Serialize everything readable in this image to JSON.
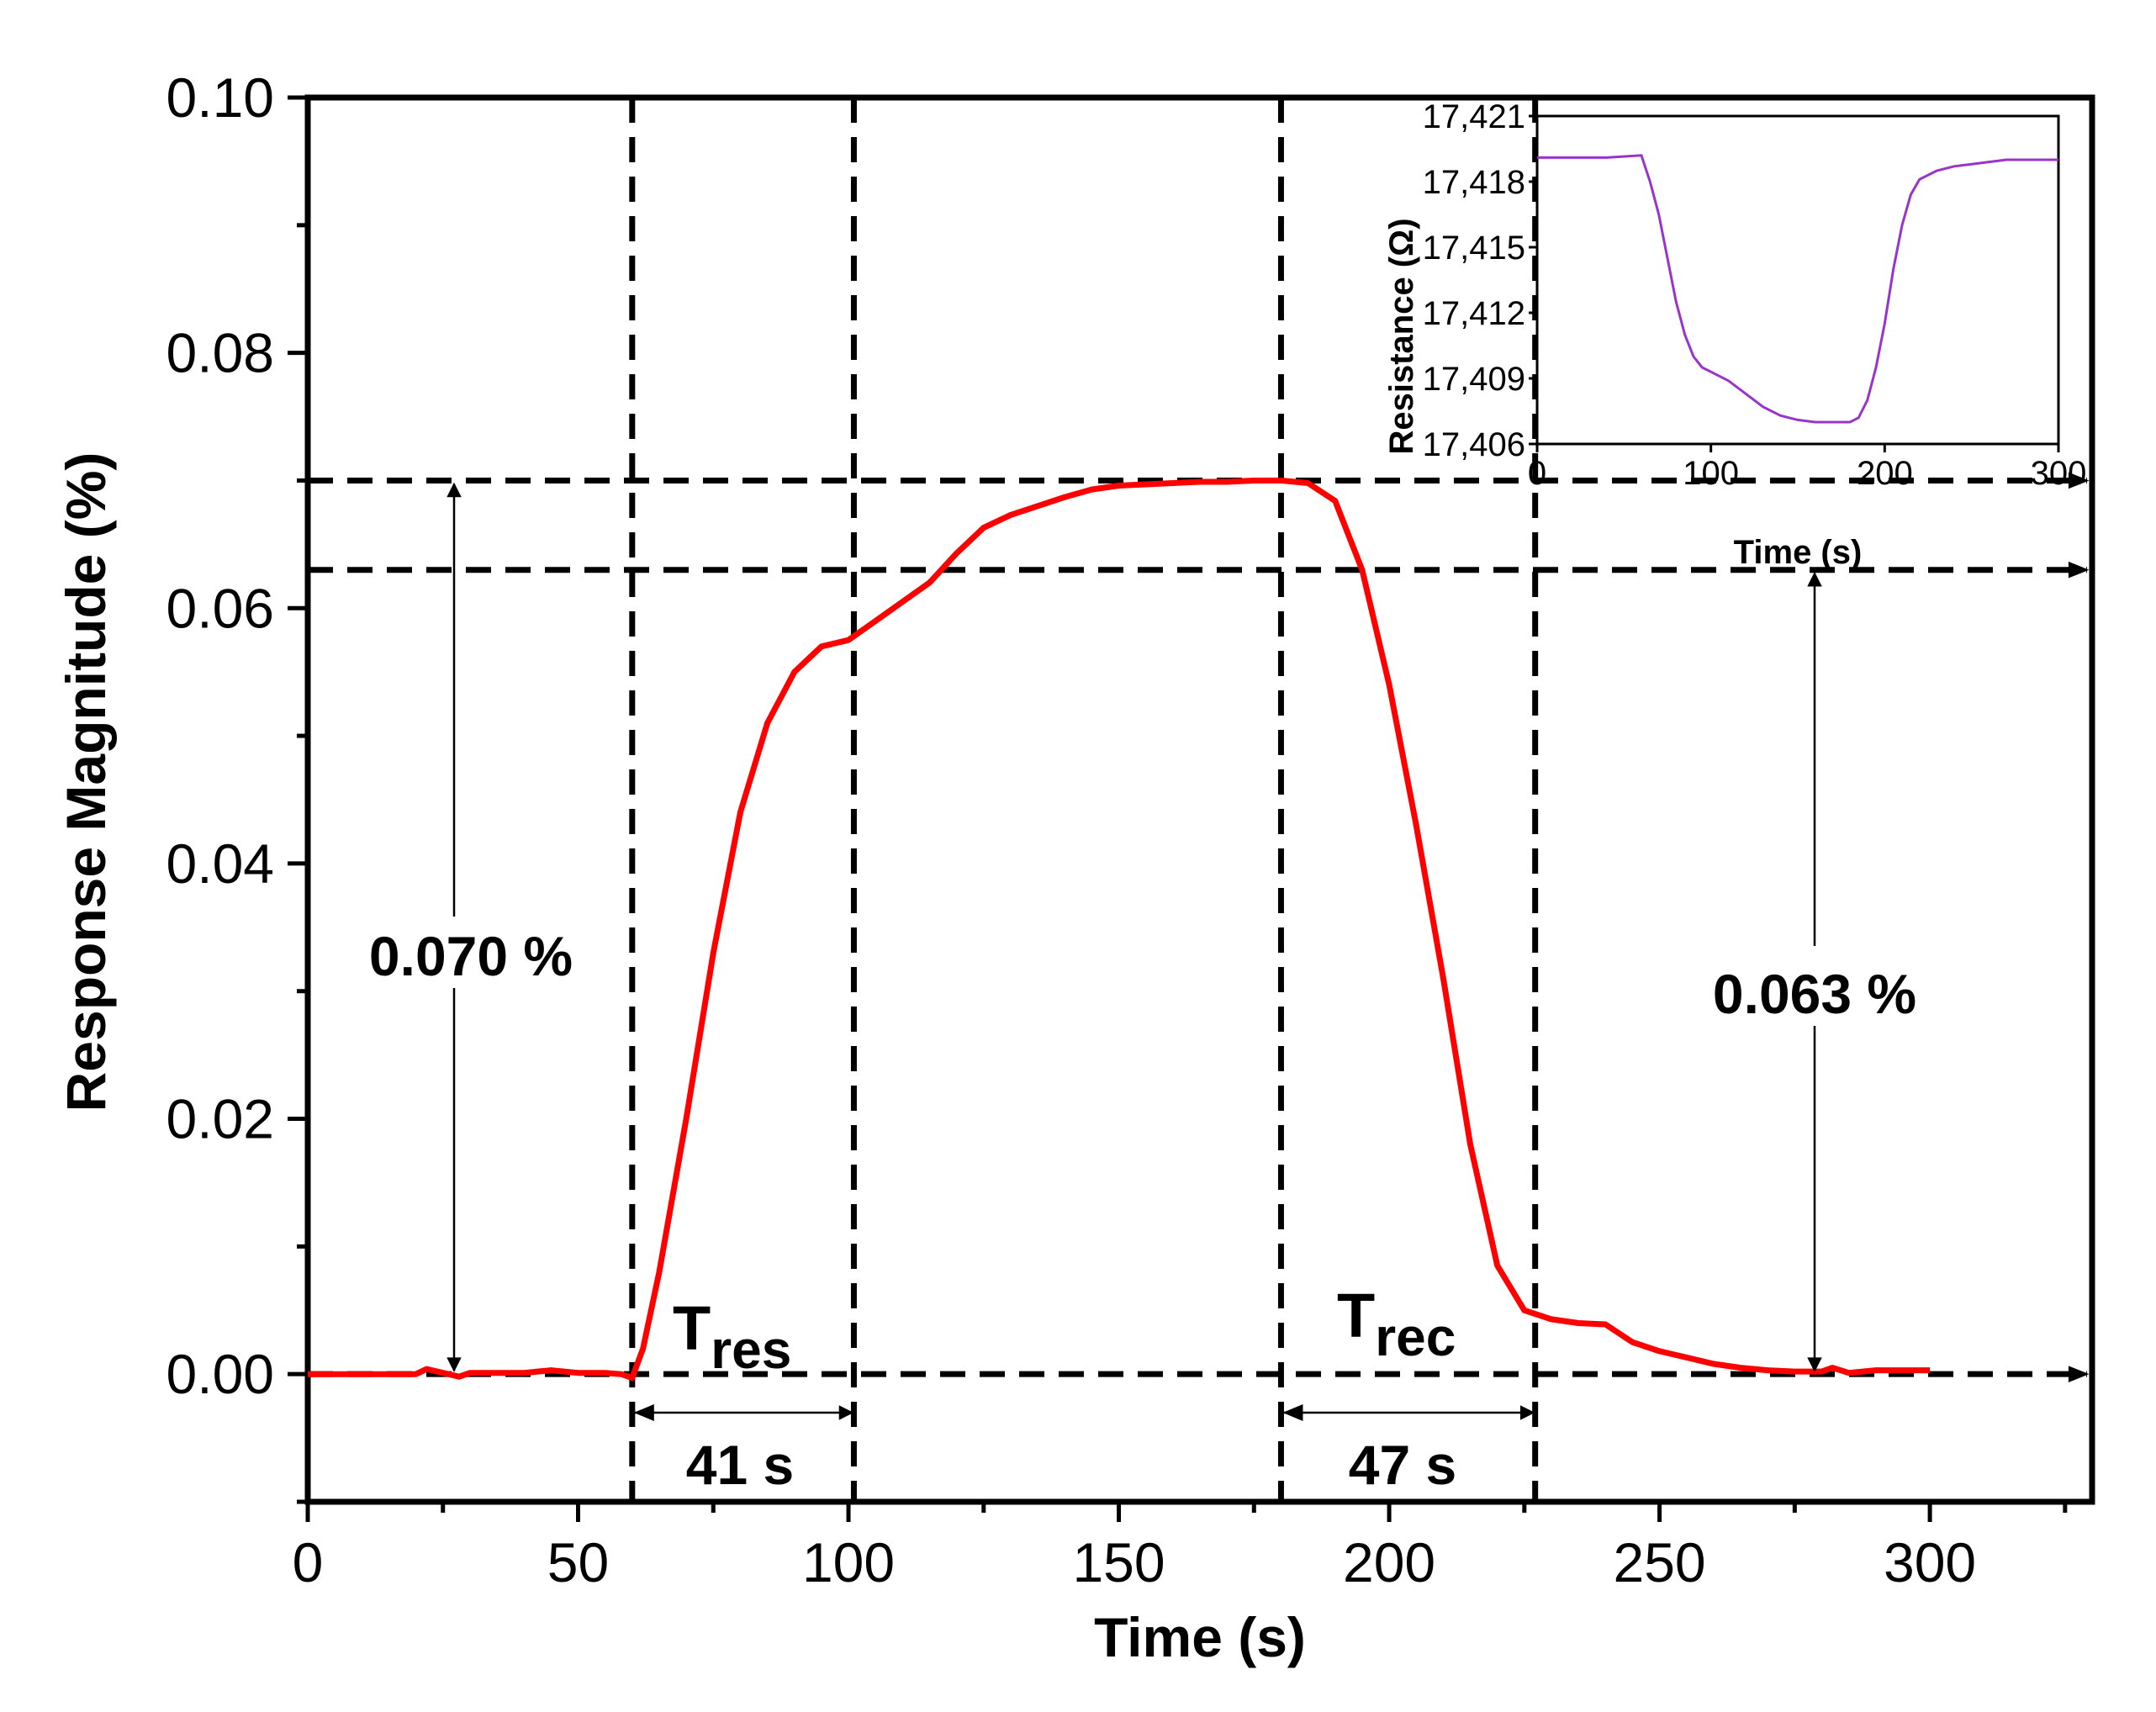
{
  "chart_data": {
    "type": "line",
    "main": {
      "xlabel": "Time (s)",
      "ylabel": "Response Magnitude (%)",
      "xlim": [
        0,
        330
      ],
      "ylim": [
        -0.01,
        0.1
      ],
      "x_ticks": [
        "0",
        "50",
        "100",
        "150",
        "200",
        "250",
        "300"
      ],
      "y_ticks": [
        "0.00",
        "0.02",
        "0.04",
        "0.06",
        "0.08",
        "0.10"
      ],
      "series": [
        {
          "name": "Response Magnitude",
          "color": "#ff0000",
          "x": [
            0,
            10,
            20,
            22,
            25,
            28,
            30,
            35,
            40,
            45,
            50,
            55,
            58,
            60,
            62,
            65,
            70,
            75,
            80,
            85,
            90,
            95,
            100,
            105,
            110,
            115,
            120,
            125,
            130,
            135,
            140,
            145,
            150,
            155,
            160,
            165,
            170,
            175,
            180,
            185,
            190,
            195,
            200,
            205,
            210,
            215,
            220,
            225,
            230,
            235,
            240,
            245,
            250,
            255,
            260,
            265,
            270,
            275,
            280,
            282,
            285,
            290,
            295,
            300
          ],
          "y": [
            0.0,
            0.0,
            0.0,
            0.0004,
            0.0001,
            -0.0002,
            0.0001,
            0.0001,
            0.0001,
            0.0003,
            0.0001,
            0.0001,
            0.0,
            -0.0003,
            0.002,
            0.008,
            0.02,
            0.033,
            0.044,
            0.051,
            0.055,
            0.057,
            0.0575,
            0.059,
            0.0605,
            0.062,
            0.0643,
            0.0663,
            0.0673,
            0.068,
            0.0687,
            0.0693,
            0.0696,
            0.0697,
            0.0698,
            0.0699,
            0.0699,
            0.07,
            0.07,
            0.0698,
            0.0684,
            0.063,
            0.054,
            0.043,
            0.031,
            0.018,
            0.0085,
            0.005,
            0.0043,
            0.004,
            0.0039,
            0.0025,
            0.0018,
            0.0013,
            0.0008,
            0.0005,
            0.0003,
            0.0002,
            0.0002,
            0.0005,
            0.0001,
            0.0003,
            0.0003,
            0.0003
          ]
        }
      ],
      "annotations": {
        "response_magnitude": "0.070 %",
        "recovery_magnitude": "0.063 %",
        "t_res_base": "T",
        "t_res_sub": "res",
        "t_rec_base": "T",
        "t_rec_sub": "rec",
        "t_res_value": "41 s",
        "t_rec_value": "47 s"
      },
      "reference_lines": {
        "vertical_x": [
          60,
          101,
          180,
          227
        ],
        "horizontal_y": [
          0.07,
          0.063,
          0.0
        ]
      }
    },
    "inset": {
      "type": "line",
      "xlabel": "Time (s)",
      "ylabel": "Resistance (Ω)",
      "xlim": [
        0,
        300
      ],
      "ylim": [
        17406,
        17421
      ],
      "x_ticks": [
        "0",
        "100",
        "200",
        "300"
      ],
      "y_ticks": [
        "17,406",
        "17,409",
        "17,412",
        "17,415",
        "17,418",
        "17,421"
      ],
      "series": [
        {
          "name": "Resistance",
          "color": "#9933cc",
          "x": [
            0,
            20,
            40,
            60,
            65,
            70,
            75,
            80,
            85,
            90,
            95,
            100,
            110,
            120,
            130,
            140,
            150,
            160,
            170,
            180,
            185,
            190,
            195,
            200,
            205,
            210,
            215,
            220,
            225,
            230,
            240,
            250,
            260,
            270,
            280,
            290,
            300
          ],
          "y": [
            17419.1,
            17419.1,
            17419.1,
            17419.2,
            17418.0,
            17416.5,
            17414.5,
            17412.5,
            17411.0,
            17410.0,
            17409.5,
            17409.3,
            17408.9,
            17408.3,
            17407.7,
            17407.3,
            17407.1,
            17407.0,
            17407.0,
            17407.0,
            17407.2,
            17408.0,
            17409.5,
            17411.5,
            17414.0,
            17416.0,
            17417.4,
            17418.1,
            17418.3,
            17418.5,
            17418.7,
            17418.8,
            17418.9,
            17419.0,
            17419.0,
            17419.0,
            17419.0
          ]
        }
      ]
    }
  }
}
